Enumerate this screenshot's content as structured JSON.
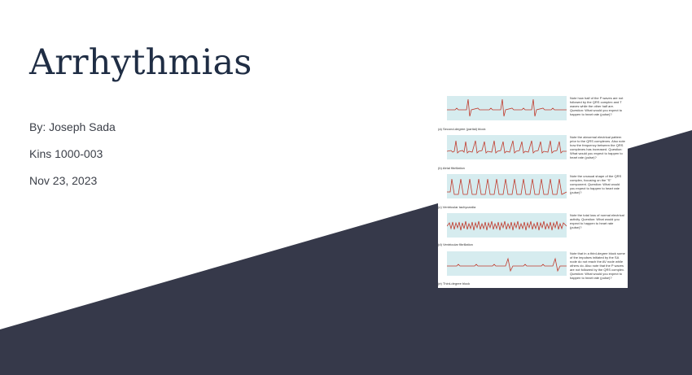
{
  "slide": {
    "title": "Arrhythmias",
    "author": "By: Joseph Sada",
    "course": "Kins 1000-003",
    "date": "Nov 23, 2023"
  },
  "colors": {
    "background": "#ffffff",
    "accent_shape": "#36394a",
    "title": "#1f2d44",
    "text": "#3c4049",
    "ecg_strip": "#d6ecef",
    "ecg_trace": "#c0392b"
  },
  "figure": {
    "panels": [
      {
        "caption": "(a)  Second-degree (partial) block",
        "note": "Note how half of the P waves are not followed by the QRS complex and T waves while the other half are. Question: What would you expect to happen to heart rate (pulse)?"
      },
      {
        "caption": "(b)  Atrial fibrillation",
        "note": "Note the abnormal electrical pattern prior to the QRS complexes. Also note how the frequency between the QRS complexes has increased. Question: What would you expect to happen to heart rate (pulse)?"
      },
      {
        "caption": "(c)  Ventricular tachycardia",
        "note": "Note the unusual shape of the QRS complex, focusing on the \"S\" component. Question: What would you expect to happen to heart rate (pulse)?"
      },
      {
        "caption": "(d)  Ventricular fibrillation",
        "note": "Note the total loss of normal electrical activity. Question: What would you expect to happen to heart rate (pulse)?"
      },
      {
        "caption": "(e)  Third-degree block",
        "note": "Note that in a third-degree block some of the impulses initiated by the SA node do not reach the AV node while others do. Also note that the P waves are not followed by the QRS complex. Question: What would you expect to happen to heart rate (pulse)?"
      }
    ]
  }
}
